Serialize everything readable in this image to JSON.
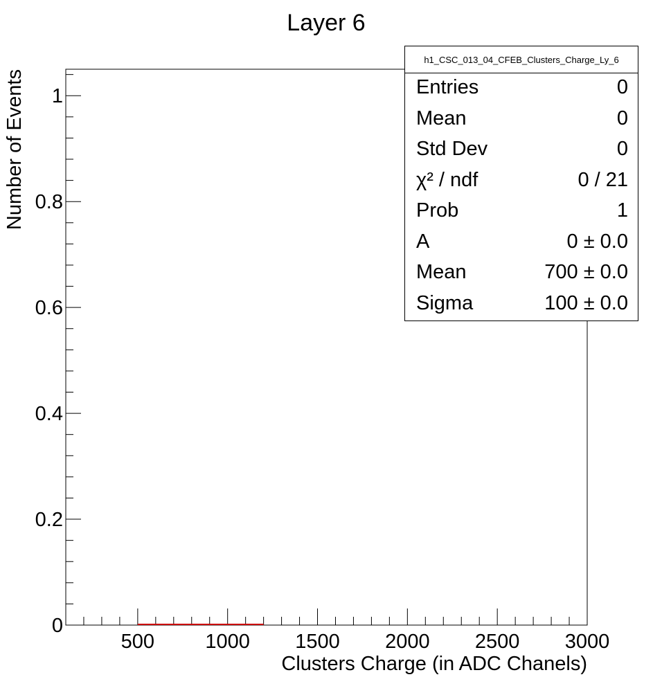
{
  "chart_data": {
    "type": "bar",
    "title": "Layer 6",
    "xlabel": "Clusters Charge (in ADC Chanels)",
    "ylabel": "Number of Events",
    "xlim": [
      100,
      3000
    ],
    "ylim": [
      0,
      1.05
    ],
    "x_ticks": [
      500,
      1000,
      1500,
      2000,
      2500,
      3000
    ],
    "y_ticks": [
      0,
      0.2,
      0.4,
      0.6,
      0.8,
      1
    ],
    "y_tick_labels": [
      "0",
      "0.2",
      "0.4",
      "0.6",
      "0.8",
      "1"
    ],
    "series": [
      {
        "values": [
          0
        ],
        "color": "#000000"
      }
    ],
    "fit_curve": {
      "range": [
        500,
        1200
      ],
      "value": 0,
      "color": "#cc0000"
    },
    "legend_position": "top-right"
  },
  "stats": {
    "title": "h1_CSC_013_04_CFEB_Clusters_Charge_Ly_6",
    "rows": [
      {
        "key": "Entries",
        "value": "0"
      },
      {
        "key": "Mean",
        "value": "0"
      },
      {
        "key": "Std Dev",
        "value": "0"
      },
      {
        "key": "χ² / ndf",
        "value": "0 / 21"
      },
      {
        "key": "Prob",
        "value": "1"
      },
      {
        "key": "A",
        "value": "0 ± 0.0"
      },
      {
        "key": "Mean",
        "value": "700 ± 0.0"
      },
      {
        "key": "Sigma",
        "value": "100 ± 0.0"
      }
    ]
  }
}
